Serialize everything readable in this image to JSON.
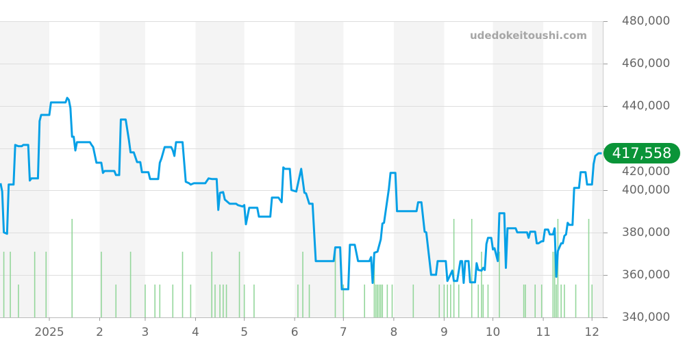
{
  "watermark": "udedokeitoushi.com",
  "current_price_label": "417,558",
  "chart_data": {
    "type": "line",
    "ylim": [
      340000,
      480000
    ],
    "y_ticks": [
      "480,000",
      "460,000",
      "440,000",
      "420,000",
      "400,000",
      "380,000",
      "360,000",
      "340,000"
    ],
    "y_tick_values": [
      480000,
      460000,
      440000,
      420000,
      400000,
      380000,
      360000,
      340000
    ],
    "x_ticks": [
      {
        "label": "2025",
        "date": "2025-01-01"
      },
      {
        "label": "2",
        "date": "2025-02-01"
      },
      {
        "label": "3",
        "date": "2025-03-01"
      },
      {
        "label": "4",
        "date": "2025-04-01"
      },
      {
        "label": "5",
        "date": "2025-05-01"
      },
      {
        "label": "6",
        "date": "2025-06-01"
      },
      {
        "label": "7",
        "date": "2025-07-01"
      },
      {
        "label": "8",
        "date": "2025-08-01"
      },
      {
        "label": "9",
        "date": "2025-09-01"
      },
      {
        "label": "10",
        "date": "2025-10-01"
      },
      {
        "label": "11",
        "date": "2025-11-01"
      },
      {
        "label": "12",
        "date": "2025-12-01"
      }
    ],
    "x_range": [
      "2024-12-02",
      "2025-12-07"
    ],
    "grid": true,
    "alternating_month_bands": true,
    "colors": {
      "line": "#06a0e6",
      "volume": "#93d69a",
      "badge": "#0a9438",
      "band": "#f4f4f4"
    },
    "price_series": [
      [
        "2024-12-02",
        403400
      ],
      [
        "2024-12-03",
        399500
      ],
      [
        "2024-12-04",
        380200
      ],
      [
        "2024-12-06",
        379500
      ],
      [
        "2024-12-07",
        402800
      ],
      [
        "2024-12-10",
        402800
      ],
      [
        "2024-12-11",
        421500
      ],
      [
        "2024-12-13",
        420900
      ],
      [
        "2024-12-15",
        420900
      ],
      [
        "2024-12-16",
        421500
      ],
      [
        "2024-12-19",
        421500
      ],
      [
        "2024-12-20",
        404700
      ],
      [
        "2024-12-21",
        405700
      ],
      [
        "2024-12-25",
        405700
      ],
      [
        "2024-12-26",
        432800
      ],
      [
        "2024-12-27",
        435700
      ],
      [
        "2025-01-01",
        435700
      ],
      [
        "2025-01-02",
        441600
      ],
      [
        "2025-01-11",
        441600
      ],
      [
        "2025-01-12",
        443800
      ],
      [
        "2025-01-13",
        442800
      ],
      [
        "2025-01-14",
        439000
      ],
      [
        "2025-01-15",
        425400
      ],
      [
        "2025-01-16",
        425400
      ],
      [
        "2025-01-17",
        418900
      ],
      [
        "2025-01-18",
        422800
      ],
      [
        "2025-01-26",
        422800
      ],
      [
        "2025-01-27",
        421500
      ],
      [
        "2025-01-28",
        420500
      ],
      [
        "2025-01-30",
        413100
      ],
      [
        "2025-02-02",
        413100
      ],
      [
        "2025-02-03",
        408300
      ],
      [
        "2025-02-04",
        409200
      ],
      [
        "2025-02-10",
        409200
      ],
      [
        "2025-02-11",
        407300
      ],
      [
        "2025-02-13",
        407300
      ],
      [
        "2025-02-14",
        433500
      ],
      [
        "2025-02-17",
        433500
      ],
      [
        "2025-02-19",
        423800
      ],
      [
        "2025-02-20",
        418000
      ],
      [
        "2025-02-22",
        418000
      ],
      [
        "2025-02-24",
        413400
      ],
      [
        "2025-02-26",
        413400
      ],
      [
        "2025-02-27",
        408600
      ],
      [
        "2025-03-03",
        408600
      ],
      [
        "2025-03-04",
        405400
      ],
      [
        "2025-03-09",
        405400
      ],
      [
        "2025-03-10",
        413100
      ],
      [
        "2025-03-11",
        415100
      ],
      [
        "2025-03-13",
        420500
      ],
      [
        "2025-03-17",
        420500
      ],
      [
        "2025-03-18",
        418900
      ],
      [
        "2025-03-19",
        416300
      ],
      [
        "2025-03-20",
        422800
      ],
      [
        "2025-03-24",
        422800
      ],
      [
        "2025-03-26",
        404100
      ],
      [
        "2025-03-28",
        403400
      ],
      [
        "2025-03-29",
        402800
      ],
      [
        "2025-03-31",
        403400
      ],
      [
        "2025-04-07",
        403400
      ],
      [
        "2025-04-09",
        405700
      ],
      [
        "2025-04-11",
        405400
      ],
      [
        "2025-04-14",
        405400
      ],
      [
        "2025-04-15",
        390800
      ],
      [
        "2025-04-16",
        398900
      ],
      [
        "2025-04-18",
        399200
      ],
      [
        "2025-04-19",
        395700
      ],
      [
        "2025-04-22",
        393700
      ],
      [
        "2025-04-26",
        393700
      ],
      [
        "2025-04-27",
        393100
      ],
      [
        "2025-04-30",
        392400
      ],
      [
        "2025-05-01",
        393100
      ],
      [
        "2025-05-02",
        384000
      ],
      [
        "2025-05-04",
        391800
      ],
      [
        "2025-05-09",
        391800
      ],
      [
        "2025-05-10",
        387600
      ],
      [
        "2025-05-17",
        387600
      ],
      [
        "2025-05-18",
        396600
      ],
      [
        "2025-05-22",
        396600
      ],
      [
        "2025-05-24",
        394400
      ],
      [
        "2025-05-25",
        410900
      ],
      [
        "2025-05-26",
        410200
      ],
      [
        "2025-05-29",
        410200
      ],
      [
        "2025-05-30",
        400200
      ],
      [
        "2025-06-02",
        399500
      ],
      [
        "2025-06-05",
        410200
      ],
      [
        "2025-06-07",
        398900
      ],
      [
        "2025-06-08",
        398600
      ],
      [
        "2025-06-10",
        393700
      ],
      [
        "2025-06-12",
        393700
      ],
      [
        "2025-06-14",
        366600
      ],
      [
        "2025-06-25",
        366600
      ],
      [
        "2025-06-26",
        373100
      ],
      [
        "2025-06-29",
        373100
      ],
      [
        "2025-06-30",
        353300
      ],
      [
        "2025-07-04",
        353300
      ],
      [
        "2025-07-05",
        374300
      ],
      [
        "2025-07-08",
        374300
      ],
      [
        "2025-07-10",
        366600
      ],
      [
        "2025-07-17",
        366600
      ],
      [
        "2025-07-18",
        368500
      ],
      [
        "2025-07-19",
        356300
      ],
      [
        "2025-07-20",
        370500
      ],
      [
        "2025-07-22",
        371100
      ],
      [
        "2025-07-24",
        376900
      ],
      [
        "2025-07-25",
        384400
      ],
      [
        "2025-07-26",
        384700
      ],
      [
        "2025-07-29",
        400800
      ],
      [
        "2025-07-30",
        408300
      ],
      [
        "2025-08-02",
        408300
      ],
      [
        "2025-08-03",
        390200
      ],
      [
        "2025-08-15",
        390200
      ],
      [
        "2025-08-16",
        394400
      ],
      [
        "2025-08-18",
        394400
      ],
      [
        "2025-08-20",
        380500
      ],
      [
        "2025-08-21",
        380200
      ],
      [
        "2025-08-24",
        360100
      ],
      [
        "2025-08-27",
        360100
      ],
      [
        "2025-08-28",
        366600
      ],
      [
        "2025-09-02",
        366600
      ],
      [
        "2025-09-03",
        357200
      ],
      [
        "2025-09-06",
        362100
      ],
      [
        "2025-09-07",
        357200
      ],
      [
        "2025-09-09",
        357200
      ],
      [
        "2025-09-11",
        366600
      ],
      [
        "2025-09-12",
        366600
      ],
      [
        "2025-09-13",
        356300
      ],
      [
        "2025-09-14",
        366600
      ],
      [
        "2025-09-16",
        366600
      ],
      [
        "2025-09-17",
        356600
      ],
      [
        "2025-09-20",
        356600
      ],
      [
        "2025-09-21",
        365600
      ],
      [
        "2025-09-22",
        362400
      ],
      [
        "2025-09-24",
        362100
      ],
      [
        "2025-09-25",
        363400
      ],
      [
        "2025-09-26",
        362400
      ],
      [
        "2025-09-27",
        374700
      ],
      [
        "2025-09-28",
        377600
      ],
      [
        "2025-09-30",
        377600
      ],
      [
        "2025-10-01",
        372100
      ],
      [
        "2025-10-02",
        372700
      ],
      [
        "2025-10-04",
        366600
      ],
      [
        "2025-10-05",
        389200
      ],
      [
        "2025-10-08",
        389200
      ],
      [
        "2025-10-09",
        363400
      ],
      [
        "2025-10-10",
        382100
      ],
      [
        "2025-10-15",
        382100
      ],
      [
        "2025-10-16",
        380200
      ],
      [
        "2025-10-22",
        380200
      ],
      [
        "2025-10-23",
        377600
      ],
      [
        "2025-10-24",
        380500
      ],
      [
        "2025-10-27",
        380500
      ],
      [
        "2025-10-28",
        375000
      ],
      [
        "2025-10-29",
        375000
      ],
      [
        "2025-10-31",
        376000
      ],
      [
        "2025-11-01",
        376000
      ],
      [
        "2025-11-02",
        381500
      ],
      [
        "2025-11-04",
        381500
      ],
      [
        "2025-11-05",
        379200
      ],
      [
        "2025-11-07",
        379200
      ],
      [
        "2025-11-08",
        382100
      ],
      [
        "2025-11-09",
        359200
      ],
      [
        "2025-11-10",
        371400
      ],
      [
        "2025-11-12",
        375000
      ],
      [
        "2025-11-13",
        375000
      ],
      [
        "2025-11-14",
        378500
      ],
      [
        "2025-11-15",
        379200
      ],
      [
        "2025-11-16",
        384700
      ],
      [
        "2025-11-17",
        383700
      ],
      [
        "2025-11-19",
        383700
      ],
      [
        "2025-11-20",
        401200
      ],
      [
        "2025-11-23",
        401200
      ],
      [
        "2025-11-24",
        408600
      ],
      [
        "2025-11-27",
        408600
      ],
      [
        "2025-11-28",
        402800
      ],
      [
        "2025-12-01",
        402800
      ],
      [
        "2025-12-02",
        412500
      ],
      [
        "2025-12-03",
        416300
      ],
      [
        "2025-12-05",
        417558
      ],
      [
        "2025-12-07",
        417558
      ]
    ],
    "volume_series": [
      [
        "2024-12-04",
        2
      ],
      [
        "2024-12-08",
        2
      ],
      [
        "2024-12-13",
        1
      ],
      [
        "2024-12-23",
        2
      ],
      [
        "2024-12-30",
        2
      ],
      [
        "2025-01-15",
        3
      ],
      [
        "2025-02-02",
        2
      ],
      [
        "2025-02-11",
        1
      ],
      [
        "2025-02-20",
        2
      ],
      [
        "2025-03-01",
        1
      ],
      [
        "2025-03-07",
        1
      ],
      [
        "2025-03-10",
        1
      ],
      [
        "2025-03-18",
        1
      ],
      [
        "2025-03-24",
        2
      ],
      [
        "2025-03-29",
        1
      ],
      [
        "2025-04-11",
        2
      ],
      [
        "2025-04-13",
        1
      ],
      [
        "2025-04-16",
        1
      ],
      [
        "2025-04-18",
        1
      ],
      [
        "2025-04-20",
        1
      ],
      [
        "2025-04-28",
        2
      ],
      [
        "2025-05-01",
        1
      ],
      [
        "2025-05-07",
        1
      ],
      [
        "2025-06-03",
        1
      ],
      [
        "2025-06-06",
        2
      ],
      [
        "2025-06-10",
        1
      ],
      [
        "2025-06-26",
        2
      ],
      [
        "2025-07-01",
        1
      ],
      [
        "2025-07-14",
        1
      ],
      [
        "2025-07-20",
        2
      ],
      [
        "2025-07-21",
        1
      ],
      [
        "2025-07-22",
        1
      ],
      [
        "2025-07-23",
        1
      ],
      [
        "2025-07-24",
        1
      ],
      [
        "2025-07-25",
        1
      ],
      [
        "2025-07-28",
        1
      ],
      [
        "2025-07-31",
        1
      ],
      [
        "2025-08-13",
        1
      ],
      [
        "2025-08-29",
        1
      ],
      [
        "2025-09-01",
        1
      ],
      [
        "2025-09-03",
        1
      ],
      [
        "2025-09-05",
        1
      ],
      [
        "2025-09-07",
        3
      ],
      [
        "2025-09-10",
        1
      ],
      [
        "2025-09-18",
        3
      ],
      [
        "2025-09-22",
        1
      ],
      [
        "2025-09-24",
        2
      ],
      [
        "2025-09-25",
        1
      ],
      [
        "2025-09-28",
        1
      ],
      [
        "2025-10-05",
        2
      ],
      [
        "2025-10-20",
        1
      ],
      [
        "2025-10-21",
        1
      ],
      [
        "2025-10-27",
        1
      ],
      [
        "2025-10-31",
        1
      ],
      [
        "2025-11-07",
        2
      ],
      [
        "2025-11-08",
        2
      ],
      [
        "2025-11-09",
        1
      ],
      [
        "2025-11-10",
        3
      ],
      [
        "2025-11-12",
        1
      ],
      [
        "2025-11-14",
        1
      ],
      [
        "2025-11-21",
        1
      ],
      [
        "2025-11-29",
        3
      ],
      [
        "2025-12-01",
        1
      ]
    ]
  }
}
